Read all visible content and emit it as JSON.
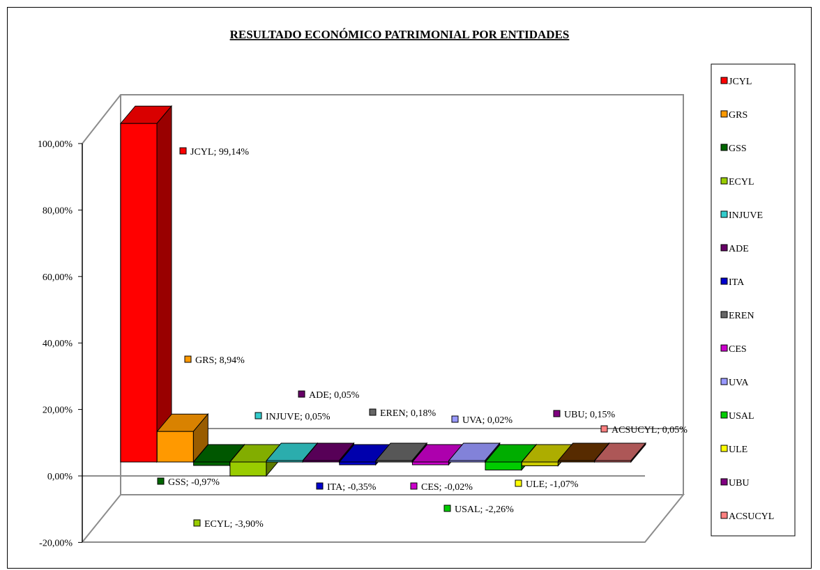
{
  "chart_data": {
    "type": "bar",
    "title": "RESULTADO ECONÓMICO PATRIMONIAL POR ENTIDADES",
    "xlabel": "",
    "ylabel": "",
    "ylim": [
      -20,
      100
    ],
    "yticks": [
      -20,
      0,
      20,
      40,
      60,
      80,
      100
    ],
    "ytick_labels": [
      "-20,00%",
      "0,00%",
      "20,00%",
      "40,00%",
      "60,00%",
      "80,00%",
      "100,00%"
    ],
    "legend_position": "right",
    "grid": false,
    "categories": [
      "JCYL",
      "GRS",
      "GSS",
      "ECYL",
      "INJUVE",
      "ADE",
      "ITA",
      "EREN",
      "CES",
      "UVA",
      "USAL",
      "ULE",
      "UBU",
      "ACSUCYL"
    ],
    "values": [
      99.14,
      8.94,
      -0.97,
      -3.9,
      0.05,
      0.05,
      -0.35,
      0.18,
      -0.02,
      0.02,
      -2.26,
      -1.07,
      0.15,
      0.05
    ],
    "data_labels": [
      "JCYL; 99,14%",
      "GRS; 8,94%",
      "GSS; -0,97%",
      "ECYL; -3,90%",
      "INJUVE; 0,05%",
      "ADE; 0,05%",
      "ITA; -0,35%",
      "EREN; 0,18%",
      "CES; -0,02%",
      "UVA; 0,02%",
      "USAL; -2,26%",
      "ULE; -1,07%",
      "UBU; 0,15%",
      "ACSUCYL; 0,05%"
    ],
    "colors": [
      "#FF0000",
      "#FF9900",
      "#006600",
      "#99CC00",
      "#33CCCC",
      "#660066",
      "#0000CC",
      "#666666",
      "#CC00CC",
      "#9999FF",
      "#00CC00",
      "#FFFF00",
      "#800080",
      "#FF8080"
    ],
    "bar_colors": [
      "#FF0000",
      "#FF9900",
      "#006600",
      "#99CC00",
      "#33CCCC",
      "#660066",
      "#0000CC",
      "#666666",
      "#CC00CC",
      "#9999FF",
      "#00CC00",
      "#CCCC00",
      "#663300",
      "#CC6666"
    ]
  }
}
